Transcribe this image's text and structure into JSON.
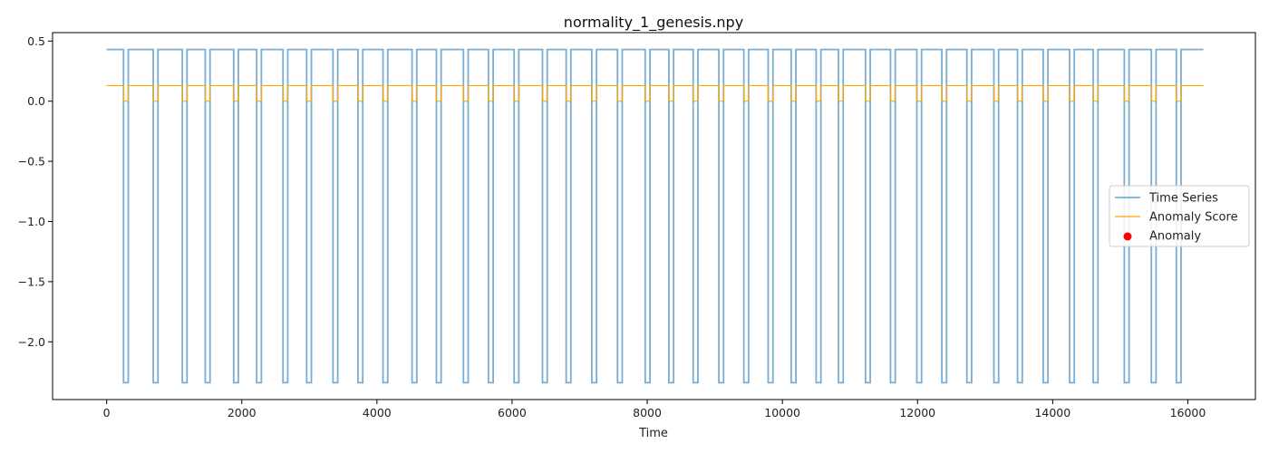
{
  "chart_data": {
    "type": "line",
    "title": "normality_1_genesis.npy",
    "xlabel": "Time",
    "ylabel": "",
    "xlim": [
      -800,
      17000
    ],
    "ylim": [
      -2.48,
      0.57
    ],
    "x_ticks": [
      0,
      2000,
      4000,
      6000,
      8000,
      10000,
      12000,
      14000,
      16000
    ],
    "x_tick_labels": [
      "0",
      "2000",
      "4000",
      "6000",
      "8000",
      "10000",
      "12000",
      "14000",
      "16000"
    ],
    "y_ticks": [
      0.5,
      0.0,
      -0.5,
      -1.0,
      -1.5,
      -2.0
    ],
    "y_tick_labels": [
      "0.5",
      "0.0",
      "−0.5",
      "−1.0",
      "−1.5",
      "−2.0"
    ],
    "grid": false,
    "legend_position": "center-right",
    "series": [
      {
        "name": "Time Series",
        "kind": "line",
        "color": "#1f77b4",
        "alpha": 0.6,
        "baseline": 0.43,
        "dip_value": -2.34,
        "x_start": 0,
        "x_end": 16230,
        "dips": [
          [
            250,
            320
          ],
          [
            690,
            760
          ],
          [
            1120,
            1190
          ],
          [
            1460,
            1530
          ],
          [
            1880,
            1950
          ],
          [
            2220,
            2290
          ],
          [
            2610,
            2680
          ],
          [
            2960,
            3030
          ],
          [
            3350,
            3420
          ],
          [
            3720,
            3790
          ],
          [
            4090,
            4160
          ],
          [
            4520,
            4590
          ],
          [
            4880,
            4950
          ],
          [
            5280,
            5350
          ],
          [
            5650,
            5720
          ],
          [
            6030,
            6100
          ],
          [
            6450,
            6520
          ],
          [
            6800,
            6870
          ],
          [
            7180,
            7250
          ],
          [
            7560,
            7630
          ],
          [
            7970,
            8040
          ],
          [
            8320,
            8390
          ],
          [
            8680,
            8750
          ],
          [
            9060,
            9130
          ],
          [
            9430,
            9500
          ],
          [
            9790,
            9860
          ],
          [
            10130,
            10200
          ],
          [
            10500,
            10570
          ],
          [
            10830,
            10900
          ],
          [
            11230,
            11300
          ],
          [
            11600,
            11670
          ],
          [
            11990,
            12060
          ],
          [
            12360,
            12430
          ],
          [
            12730,
            12800
          ],
          [
            13130,
            13200
          ],
          [
            13480,
            13550
          ],
          [
            13860,
            13930
          ],
          [
            14250,
            14320
          ],
          [
            14600,
            14670
          ],
          [
            15060,
            15130
          ],
          [
            15460,
            15530
          ],
          [
            15830,
            15900
          ]
        ]
      },
      {
        "name": "Anomaly Score",
        "kind": "line",
        "color": "#ffa500",
        "alpha": 1.0,
        "baseline": 0.13,
        "dip_value": 0.0,
        "x_start": 0,
        "x_end": 16230
      },
      {
        "name": "Anomaly",
        "kind": "scatter",
        "color": "#ff0000",
        "points": []
      }
    ]
  }
}
